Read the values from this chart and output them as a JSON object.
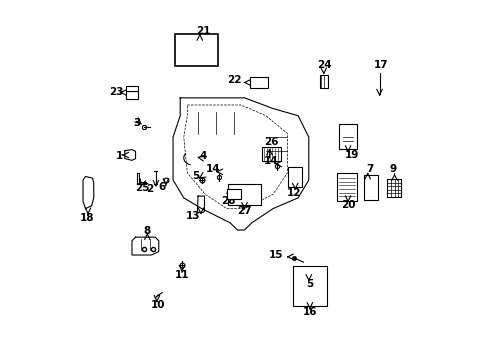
{
  "title": "",
  "bg_color": "#ffffff",
  "line_color": "#000000",
  "figsize": [
    4.89,
    3.6
  ],
  "dpi": 100
}
